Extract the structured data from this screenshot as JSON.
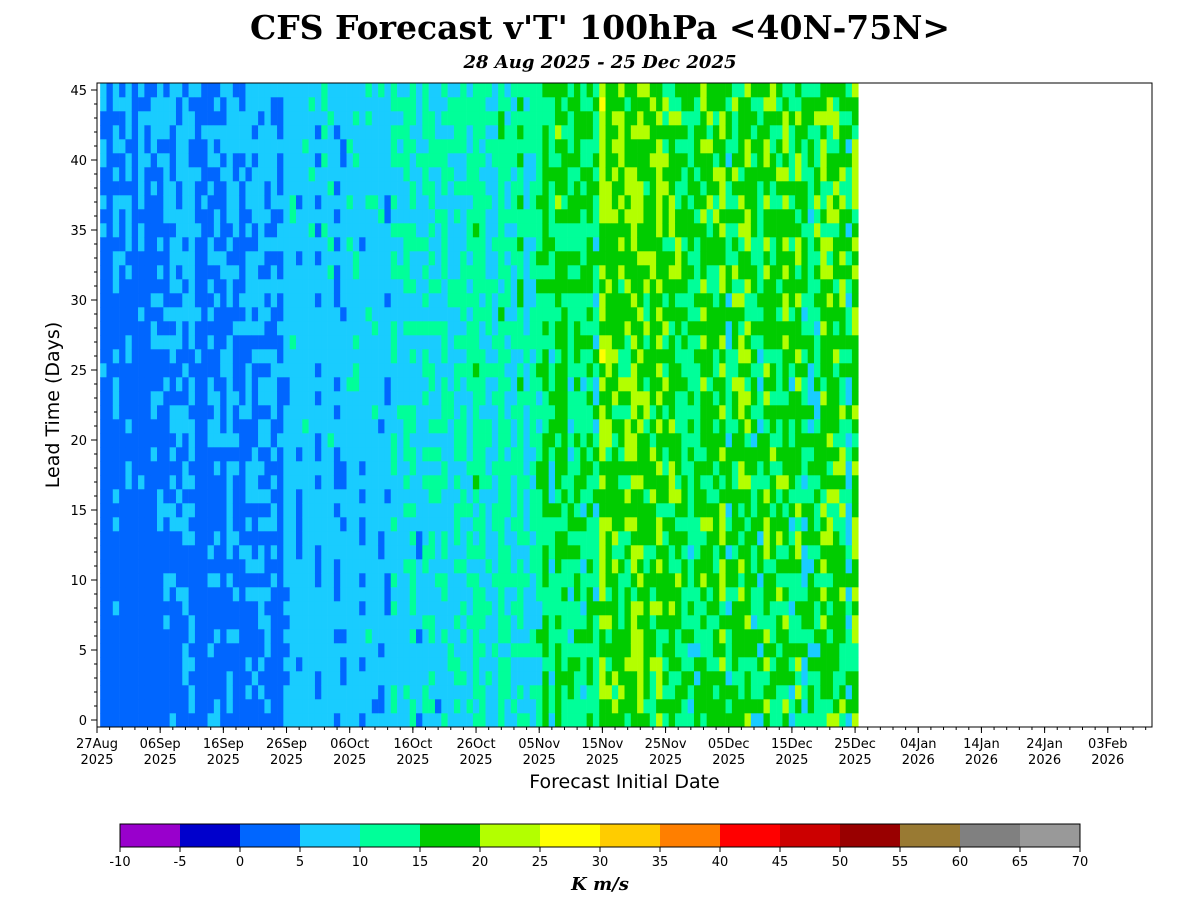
{
  "chart_data": {
    "type": "heatmap",
    "title": "CFS Forecast v'T' 100hPa <40N-75N>",
    "subtitle": "28 Aug 2025 - 25 Dec 2025",
    "xlabel": "Forecast Initial Date",
    "ylabel": "Lead Time (Days)",
    "x_start": "2025-08-27",
    "x_end": "2026-02-10",
    "init_first": "2025-08-28",
    "init_last": "2025-12-25",
    "xlim": [
      "2025-08-27",
      "2026-02-10"
    ],
    "ylim": [
      -0.5,
      45.5
    ],
    "xticks": [
      {
        "date": "2025-08-27",
        "label": [
          "27Aug",
          "2025"
        ]
      },
      {
        "date": "2025-09-06",
        "label": [
          "06Sep",
          "2025"
        ]
      },
      {
        "date": "2025-09-16",
        "label": [
          "16Sep",
          "2025"
        ]
      },
      {
        "date": "2025-09-26",
        "label": [
          "26Sep",
          "2025"
        ]
      },
      {
        "date": "2025-10-06",
        "label": [
          "06Oct",
          "2025"
        ]
      },
      {
        "date": "2025-10-16",
        "label": [
          "16Oct",
          "2025"
        ]
      },
      {
        "date": "2025-10-26",
        "label": [
          "26Oct",
          "2025"
        ]
      },
      {
        "date": "2025-11-05",
        "label": [
          "05Nov",
          "2025"
        ]
      },
      {
        "date": "2025-11-15",
        "label": [
          "15Nov",
          "2025"
        ]
      },
      {
        "date": "2025-11-25",
        "label": [
          "25Nov",
          "2025"
        ]
      },
      {
        "date": "2025-12-05",
        "label": [
          "05Dec",
          "2025"
        ]
      },
      {
        "date": "2025-12-15",
        "label": [
          "15Dec",
          "2025"
        ]
      },
      {
        "date": "2025-12-25",
        "label": [
          "25Dec",
          "2025"
        ]
      },
      {
        "date": "2026-01-04",
        "label": [
          "04Jan",
          "2026"
        ]
      },
      {
        "date": "2026-01-14",
        "label": [
          "14Jan",
          "2026"
        ]
      },
      {
        "date": "2026-01-24",
        "label": [
          "24Jan",
          "2026"
        ]
      },
      {
        "date": "2026-02-03",
        "label": [
          "03Feb",
          "2026"
        ]
      }
    ],
    "yticks": [
      0,
      5,
      10,
      15,
      20,
      25,
      30,
      35,
      40,
      45
    ],
    "colorbar": {
      "label": "K m/s",
      "levels": [
        -10,
        -5,
        0,
        5,
        10,
        15,
        20,
        25,
        30,
        35,
        40,
        45,
        50,
        55,
        60,
        65,
        70
      ],
      "colors": [
        "#9900cc",
        "#0000cc",
        "#0066ff",
        "#19ccff",
        "#00ff99",
        "#00cc00",
        "#b3ff00",
        "#ffff00",
        "#ffcc00",
        "#ff7f00",
        "#ff0000",
        "#cc0000",
        "#990000",
        "#997a33",
        "#808080",
        "#999999"
      ]
    },
    "band_means": [
      {
        "from": "2025-08-27",
        "to": "2025-09-06",
        "value": 3.2
      },
      {
        "from": "2025-09-06",
        "to": "2025-09-16",
        "value": 3.5
      },
      {
        "from": "2025-09-16",
        "to": "2025-09-26",
        "value": 4
      },
      {
        "from": "2025-09-26",
        "to": "2025-10-06",
        "value": 6
      },
      {
        "from": "2025-10-06",
        "to": "2025-10-16",
        "value": 7
      },
      {
        "from": "2025-10-16",
        "to": "2025-10-26",
        "value": 8
      },
      {
        "from": "2025-10-26",
        "to": "2025-11-05",
        "value": 10
      },
      {
        "from": "2025-11-05",
        "to": "2025-11-15",
        "value": 13
      },
      {
        "from": "2025-11-15",
        "to": "2025-11-25",
        "value": 18
      },
      {
        "from": "2025-11-25",
        "to": "2025-12-05",
        "value": 16
      },
      {
        "from": "2025-12-05",
        "to": "2025-12-15",
        "value": 15
      },
      {
        "from": "2025-12-15",
        "to": "2025-12-25",
        "value": 15
      }
    ]
  }
}
